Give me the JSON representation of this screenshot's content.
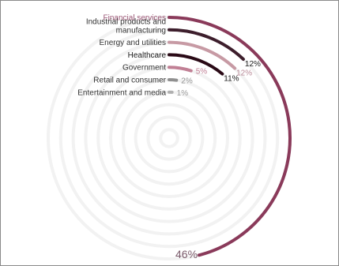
{
  "chart_data": {
    "type": "radial-bar",
    "unit": "%",
    "max_value": 100,
    "categories": [
      "Financial services",
      "Industrial products and manufacturing",
      "Energy and utilities",
      "Healthcare",
      "Government",
      "Retail and consumer",
      "Entertainment and media"
    ],
    "category_lines": [
      [
        "Financial services"
      ],
      [
        "Industrial products and",
        "manufacturing"
      ],
      [
        "Energy and utilities"
      ],
      [
        "Healthcare"
      ],
      [
        "Government"
      ],
      [
        "Retail and consumer"
      ],
      [
        "Entertainment and media"
      ]
    ],
    "values": [
      46,
      12,
      12,
      11,
      5,
      2,
      1
    ],
    "value_labels": [
      "46%",
      "12%",
      "12%",
      "11%",
      "5%",
      "2%",
      "1%"
    ],
    "colors": [
      "#8a3a5a",
      "#3d1e2c",
      "#c79aa4",
      "#2a0a16",
      "#c18095",
      "#909090",
      "#b0b0b0"
    ],
    "label_colors": [
      "#9a5574",
      "#333333",
      "#333333",
      "#1a1a1a",
      "#333333",
      "#333333",
      "#333333"
    ],
    "value_label_colors": [
      "#7a5a6a",
      "#222222",
      "#b98a98",
      "#222222",
      "#c18095",
      "#909090",
      "#9a9a9a"
    ],
    "track_color": "#f2f2f2",
    "legend": "left"
  }
}
